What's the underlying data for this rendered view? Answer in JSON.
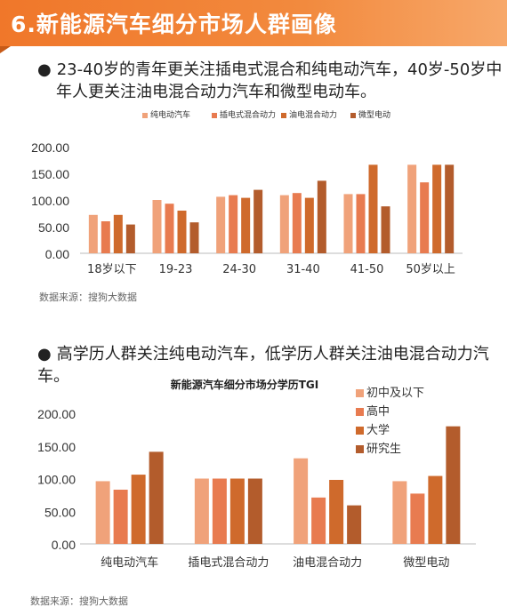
{
  "banner": {
    "title": "6.新能源汽车细分市场人群画像"
  },
  "section1": {
    "bullet": "●",
    "text_line1": "23-40岁的青年更关注插电式混合和纯电动汽车，40岁-50岁中",
    "text_line2": "年人更关注油电混合动力汽车和微型电动车。",
    "source": "数据来源：搜狗大数据"
  },
  "section2": {
    "bullet": "●",
    "text": "高学历人群关注纯电动汽车，低学历人群关注油电混合动力汽车。",
    "source": "数据来源：搜狗大数据"
  },
  "chart_data": [
    {
      "type": "bar",
      "title": "",
      "legend_position": "top",
      "categories": [
        "18岁以下",
        "19-23",
        "24-30",
        "31-40",
        "41-50",
        "50岁以上"
      ],
      "yticks": [
        "0.00",
        "50.00",
        "100.00",
        "150.00",
        "200.00"
      ],
      "ylim": [
        0,
        200
      ],
      "grid": false,
      "series": [
        {
          "name": "纯电动汽车",
          "color": "#f0a27a",
          "values": [
            72,
            100,
            106,
            109,
            111,
            166
          ]
        },
        {
          "name": "插电式混合动力",
          "color": "#e87b50",
          "values": [
            60,
            93,
            109,
            113,
            111,
            133
          ]
        },
        {
          "name": "油电混合动力",
          "color": "#cf6a2c",
          "values": [
            72,
            80,
            104,
            104,
            166,
            166
          ]
        },
        {
          "name": "微型电动",
          "color": "#b35c2c",
          "values": [
            54,
            58,
            119,
            136,
            88,
            166
          ]
        }
      ]
    },
    {
      "type": "bar",
      "title": "新能源汽车细分市场分学历TGI",
      "legend_position": "right",
      "categories": [
        "纯电动汽车",
        "插电式混合动力",
        "油电混合动力",
        "微型电动"
      ],
      "yticks": [
        "0.00",
        "50.00",
        "100.00",
        "150.00",
        "200.00"
      ],
      "ylim": [
        0,
        200
      ],
      "grid": false,
      "series": [
        {
          "name": "初中及以下",
          "color": "#f0a27a",
          "values": [
            96,
            100,
            131,
            96
          ]
        },
        {
          "name": "高中",
          "color": "#e87b50",
          "values": [
            83,
            100,
            71,
            77
          ]
        },
        {
          "name": "大学",
          "color": "#cf6a2c",
          "values": [
            106,
            100,
            98,
            104
          ]
        },
        {
          "name": "研究生",
          "color": "#b35c2c",
          "values": [
            141,
            100,
            59,
            180
          ]
        }
      ]
    }
  ]
}
